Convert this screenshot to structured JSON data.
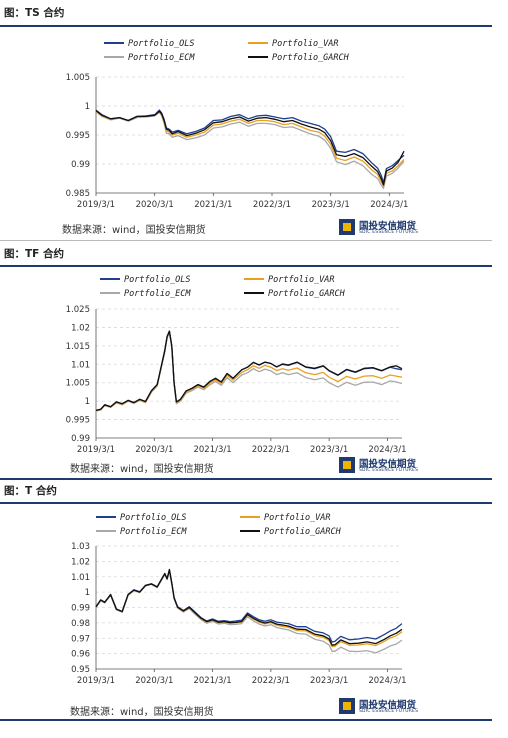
{
  "colors": {
    "rule": "#1f3a6e",
    "ols": "#1f3f8f",
    "var": "#e8a020",
    "ecm": "#a8a8a8",
    "garch": "#111111"
  },
  "source_text": "数据来源：wind，国投安信期货",
  "logo": {
    "cn": "国投安信期货",
    "en": "SDIC ESSENCE FUTURES"
  },
  "chart_data": [
    {
      "type": "line",
      "title": "图：TS 合约",
      "xlabel": "",
      "ylabel": "",
      "x_ticks": [
        "2019/3/1",
        "2020/3/1",
        "2021/3/1",
        "2022/3/1",
        "2023/3/1",
        "2024/3/1"
      ],
      "ylim": [
        0.985,
        1.005
      ],
      "y_ticks": [
        "0.985",
        "0.99",
        "0.995",
        "1",
        "1.005"
      ],
      "grid": "horizontal dashed",
      "legend": "top, two columns",
      "x": [
        2019.0,
        2019.1,
        2019.25,
        2019.4,
        2019.55,
        2019.7,
        2019.85,
        2020.0,
        2020.08,
        2020.12,
        2020.16,
        2020.2,
        2020.25,
        2020.3,
        2020.4,
        2020.55,
        2020.7,
        2020.85,
        2021.0,
        2021.15,
        2021.3,
        2021.45,
        2021.6,
        2021.75,
        2021.9,
        2022.05,
        2022.2,
        2022.35,
        2022.5,
        2022.65,
        2022.8,
        2022.9,
        2023.0,
        2023.1,
        2023.25,
        2023.4,
        2023.55,
        2023.7,
        2023.8,
        2023.86,
        2023.9,
        2023.95,
        2024.05,
        2024.15,
        2024.25
      ],
      "series": [
        {
          "name": "Portfolio_OLS",
          "values": [
            0.9993,
            0.9985,
            0.9978,
            0.998,
            0.9975,
            0.9982,
            0.9983,
            0.9985,
            0.9993,
            0.9988,
            0.9977,
            0.9962,
            0.996,
            0.9955,
            0.9958,
            0.9952,
            0.9956,
            0.9962,
            0.9975,
            0.9976,
            0.9982,
            0.9985,
            0.9978,
            0.9983,
            0.9984,
            0.9981,
            0.9978,
            0.998,
            0.9974,
            0.997,
            0.9966,
            0.996,
            0.9947,
            0.9922,
            0.992,
            0.9925,
            0.9918,
            0.9902,
            0.9893,
            0.9881,
            0.9868,
            0.9892,
            0.9897,
            0.9906,
            0.9915
          ]
        },
        {
          "name": "Portfolio_VAR",
          "values": [
            0.9991,
            0.9983,
            0.9977,
            0.998,
            0.9975,
            0.9981,
            0.9982,
            0.9984,
            0.999,
            0.9985,
            0.9973,
            0.9957,
            0.9955,
            0.995,
            0.9953,
            0.9946,
            0.995,
            0.9955,
            0.9967,
            0.9969,
            0.9974,
            0.9977,
            0.997,
            0.9975,
            0.9975,
            0.9973,
            0.9968,
            0.997,
            0.9964,
            0.9958,
            0.9955,
            0.9948,
            0.9934,
            0.991,
            0.9906,
            0.9912,
            0.9905,
            0.989,
            0.9882,
            0.987,
            0.9862,
            0.9884,
            0.9888,
            0.9897,
            0.9908
          ]
        },
        {
          "name": "Portfolio_ECM",
          "values": [
            0.999,
            0.9982,
            0.9976,
            0.9979,
            0.9974,
            0.998,
            0.9981,
            0.9983,
            0.9989,
            0.9983,
            0.997,
            0.9953,
            0.9952,
            0.9946,
            0.9949,
            0.9942,
            0.9945,
            0.995,
            0.9962,
            0.9964,
            0.9969,
            0.9972,
            0.9965,
            0.997,
            0.997,
            0.9968,
            0.9963,
            0.9964,
            0.9958,
            0.9952,
            0.9948,
            0.9941,
            0.9927,
            0.9904,
            0.9899,
            0.9905,
            0.9897,
            0.9882,
            0.9875,
            0.9864,
            0.9858,
            0.9879,
            0.9884,
            0.9893,
            0.9905
          ]
        },
        {
          "name": "Portfolio_GARCH",
          "values": [
            0.9992,
            0.9984,
            0.9978,
            0.998,
            0.9975,
            0.9982,
            0.9982,
            0.9984,
            0.9991,
            0.9986,
            0.9975,
            0.996,
            0.9958,
            0.9952,
            0.9956,
            0.9949,
            0.9953,
            0.9959,
            0.9971,
            0.9973,
            0.9978,
            0.9981,
            0.9974,
            0.9979,
            0.998,
            0.9977,
            0.9973,
            0.9975,
            0.9969,
            0.9964,
            0.996,
            0.9954,
            0.994,
            0.9916,
            0.9913,
            0.9918,
            0.9911,
            0.9896,
            0.9887,
            0.9875,
            0.9864,
            0.9888,
            0.9893,
            0.9903,
            0.9922
          ]
        }
      ]
    },
    {
      "type": "line",
      "title": "图：TF 合约",
      "xlabel": "",
      "ylabel": "",
      "x_ticks": [
        "2019/3/1",
        "2020/3/1",
        "2021/3/1",
        "2022/3/1",
        "2023/3/1",
        "2024/3/1"
      ],
      "ylim": [
        0.99,
        1.025
      ],
      "y_ticks": [
        "0.99",
        "0.995",
        "1",
        "1.005",
        "1.01",
        "1.015",
        "1.02",
        "1.025"
      ],
      "grid": "horizontal dashed",
      "legend": "top, two columns",
      "x": [
        2019.0,
        2019.08,
        2019.15,
        2019.25,
        2019.35,
        2019.45,
        2019.55,
        2019.65,
        2019.75,
        2019.85,
        2019.95,
        2020.05,
        2020.12,
        2020.18,
        2020.22,
        2020.26,
        2020.3,
        2020.34,
        2020.38,
        2020.45,
        2020.55,
        2020.65,
        2020.75,
        2020.85,
        2020.95,
        2021.05,
        2021.15,
        2021.25,
        2021.35,
        2021.5,
        2021.6,
        2021.7,
        2021.8,
        2021.9,
        2022.0,
        2022.1,
        2022.2,
        2022.3,
        2022.45,
        2022.6,
        2022.75,
        2022.9,
        2023.0,
        2023.15,
        2023.3,
        2023.45,
        2023.6,
        2023.75,
        2023.9,
        2024.05,
        2024.15,
        2024.25
      ],
      "series": [
        {
          "name": "Portfolio_OLS",
          "values": [
            0.9975,
            0.9978,
            0.999,
            0.9985,
            0.9998,
            0.9993,
            1.0002,
            0.9996,
            1.0005,
            0.9999,
            1.0028,
            1.0045,
            1.0095,
            1.0138,
            1.0175,
            1.019,
            1.015,
            1.005,
            0.9998,
            1.0005,
            1.0028,
            1.0035,
            1.0045,
            1.0038,
            1.0053,
            1.0062,
            1.0052,
            1.0075,
            1.0062,
            1.0085,
            1.0092,
            1.0105,
            1.0098,
            1.0106,
            1.0102,
            1.0093,
            1.01,
            1.0097,
            1.0105,
            1.0092,
            1.0088,
            1.0095,
            1.0082,
            1.007,
            1.0085,
            1.0078,
            1.0088,
            1.009,
            1.0082,
            1.0092,
            1.0088,
            1.0085
          ]
        },
        {
          "name": "Portfolio_VAR",
          "values": [
            0.9974,
            0.9977,
            0.9989,
            0.9984,
            0.9996,
            0.9991,
            1.0001,
            0.9995,
            1.0003,
            0.9997,
            1.0026,
            1.0043,
            1.0093,
            1.0136,
            1.0173,
            1.0188,
            1.0148,
            1.0048,
            0.9996,
            1.0003,
            1.0025,
            1.0032,
            1.0042,
            1.0035,
            1.0049,
            1.0058,
            1.0048,
            1.007,
            1.0057,
            1.0078,
            1.0085,
            1.0096,
            1.0089,
            1.0097,
            1.0092,
            1.0083,
            1.0088,
            1.0084,
            1.009,
            1.0077,
            1.0072,
            1.0078,
            1.0065,
            1.0053,
            1.0067,
            1.006,
            1.0068,
            1.0069,
            1.0062,
            1.0071,
            1.0068,
            1.0065
          ]
        },
        {
          "name": "Portfolio_ECM",
          "values": [
            0.9973,
            0.9976,
            0.9988,
            0.9983,
            0.9995,
            0.999,
            1.0,
            0.9994,
            1.0002,
            0.9996,
            1.0024,
            1.0041,
            1.0091,
            1.0134,
            1.0171,
            1.0186,
            1.0145,
            1.0044,
            0.9993,
            1.0,
            1.0022,
            1.0029,
            1.0038,
            1.0031,
            1.0044,
            1.0053,
            1.0043,
            1.0064,
            1.005,
            1.0071,
            1.0077,
            1.0088,
            1.008,
            1.0087,
            1.0082,
            1.0072,
            1.0077,
            1.0072,
            1.0077,
            1.0064,
            1.0058,
            1.0063,
            1.005,
            1.0038,
            1.0051,
            1.0043,
            1.0051,
            1.0052,
            1.0045,
            1.0055,
            1.0052,
            1.0048
          ]
        },
        {
          "name": "Portfolio_GARCH",
          "values": [
            0.9975,
            0.9978,
            0.999,
            0.9985,
            0.9998,
            0.9993,
            1.0002,
            0.9996,
            1.0005,
            0.9999,
            1.0028,
            1.0045,
            1.0095,
            1.0138,
            1.0175,
            1.019,
            1.015,
            1.005,
            0.9998,
            1.0005,
            1.0028,
            1.0035,
            1.0045,
            1.0038,
            1.0053,
            1.0062,
            1.0052,
            1.0075,
            1.0062,
            1.0085,
            1.0092,
            1.0105,
            1.0098,
            1.0106,
            1.0102,
            1.0093,
            1.0101,
            1.0098,
            1.0106,
            1.0093,
            1.0089,
            1.0096,
            1.0083,
            1.0071,
            1.0086,
            1.0079,
            1.0089,
            1.0091,
            1.0083,
            1.0093,
            1.0096,
            1.0088
          ]
        }
      ]
    },
    {
      "type": "line",
      "title": "图：T 合约",
      "xlabel": "",
      "ylabel": "",
      "x_ticks": [
        "2019/3/1",
        "2020/3/1",
        "2021/3/1",
        "2022/3/1",
        "2023/3/1",
        "2024/3/1"
      ],
      "ylim": [
        0.95,
        1.03
      ],
      "y_ticks": [
        "0.95",
        "0.96",
        "0.97",
        "0.98",
        "0.99",
        "1",
        "1.01",
        "1.02",
        "1.03"
      ],
      "grid": "horizontal dashed",
      "legend": "top, two columns",
      "x": [
        2019.0,
        2019.08,
        2019.15,
        2019.25,
        2019.35,
        2019.45,
        2019.55,
        2019.65,
        2019.75,
        2019.85,
        2019.95,
        2020.05,
        2020.12,
        2020.18,
        2020.22,
        2020.26,
        2020.3,
        2020.34,
        2020.4,
        2020.5,
        2020.6,
        2020.7,
        2020.8,
        2020.9,
        2021.0,
        2021.1,
        2021.2,
        2021.3,
        2021.4,
        2021.5,
        2021.6,
        2021.7,
        2021.8,
        2021.9,
        2022.0,
        2022.1,
        2022.2,
        2022.3,
        2022.45,
        2022.6,
        2022.75,
        2022.9,
        2023.0,
        2023.05,
        2023.1,
        2023.2,
        2023.35,
        2023.5,
        2023.65,
        2023.8,
        2023.95,
        2024.05,
        2024.15,
        2024.25
      ],
      "series": [
        {
          "name": "Portfolio_OLS",
          "values": [
            0.9905,
            0.995,
            0.9935,
            0.9985,
            0.989,
            0.9875,
            0.9985,
            1.0015,
            1.0002,
            1.0045,
            1.0055,
            1.0035,
            1.0082,
            1.0122,
            1.0088,
            1.0148,
            1.006,
            0.9965,
            0.9905,
            0.988,
            0.9905,
            0.987,
            0.9835,
            0.9812,
            0.9825,
            0.981,
            0.9815,
            0.9808,
            0.9812,
            0.9818,
            0.9865,
            0.984,
            0.982,
            0.981,
            0.982,
            0.9805,
            0.98,
            0.9795,
            0.9775,
            0.9775,
            0.9745,
            0.9735,
            0.9715,
            0.9675,
            0.968,
            0.9712,
            0.969,
            0.9695,
            0.9705,
            0.9695,
            0.9725,
            0.9748,
            0.9765,
            0.9795
          ]
        },
        {
          "name": "Portfolio_VAR",
          "values": [
            0.9903,
            0.9947,
            0.9932,
            0.9982,
            0.9887,
            0.9872,
            0.9982,
            1.0012,
            0.9999,
            1.0042,
            1.0052,
            1.0032,
            1.0078,
            1.0118,
            1.0084,
            1.0143,
            1.0055,
            0.996,
            0.99,
            0.9875,
            0.9898,
            0.9862,
            0.9828,
            0.9805,
            0.9817,
            0.9801,
            0.9805,
            0.9798,
            0.98,
            0.9805,
            0.985,
            0.9825,
            0.9805,
            0.9793,
            0.9802,
            0.9785,
            0.9778,
            0.9772,
            0.975,
            0.9748,
            0.9717,
            0.9706,
            0.9685,
            0.9645,
            0.9648,
            0.9678,
            0.9654,
            0.9656,
            0.9664,
            0.9652,
            0.968,
            0.9702,
            0.9716,
            0.9742
          ]
        },
        {
          "name": "Portfolio_ECM",
          "values": [
            0.9902,
            0.9945,
            0.993,
            0.998,
            0.9885,
            0.987,
            0.998,
            1.001,
            0.9997,
            1.004,
            1.005,
            1.003,
            1.0076,
            1.0116,
            1.0082,
            1.014,
            1.0052,
            0.9956,
            0.9896,
            0.987,
            0.9893,
            0.9856,
            0.9822,
            0.9798,
            0.981,
            0.9793,
            0.9797,
            0.9789,
            0.979,
            0.9795,
            0.984,
            0.9813,
            0.9792,
            0.978,
            0.9788,
            0.977,
            0.9762,
            0.9754,
            0.9731,
            0.9727,
            0.9694,
            0.968,
            0.9657,
            0.9615,
            0.9615,
            0.9642,
            0.9615,
            0.9614,
            0.962,
            0.9605,
            0.963,
            0.965,
            0.9662,
            0.9688
          ]
        },
        {
          "name": "Portfolio_GARCH",
          "values": [
            0.9904,
            0.9948,
            0.9933,
            0.9983,
            0.9888,
            0.9873,
            0.9983,
            1.0013,
            1.0,
            1.0043,
            1.0053,
            1.0033,
            1.008,
            1.012,
            1.0086,
            1.0145,
            1.0057,
            0.9962,
            0.9902,
            0.9877,
            0.9901,
            0.9865,
            0.9831,
            0.9808,
            0.982,
            0.9804,
            0.9808,
            0.9801,
            0.9804,
            0.9809,
            0.9855,
            0.983,
            0.981,
            0.9799,
            0.9808,
            0.9792,
            0.9786,
            0.978,
            0.9759,
            0.9757,
            0.9727,
            0.9716,
            0.9695,
            0.9655,
            0.9658,
            0.9689,
            0.9665,
            0.9668,
            0.9676,
            0.9665,
            0.9693,
            0.9716,
            0.9732,
            0.9758
          ]
        }
      ]
    }
  ]
}
